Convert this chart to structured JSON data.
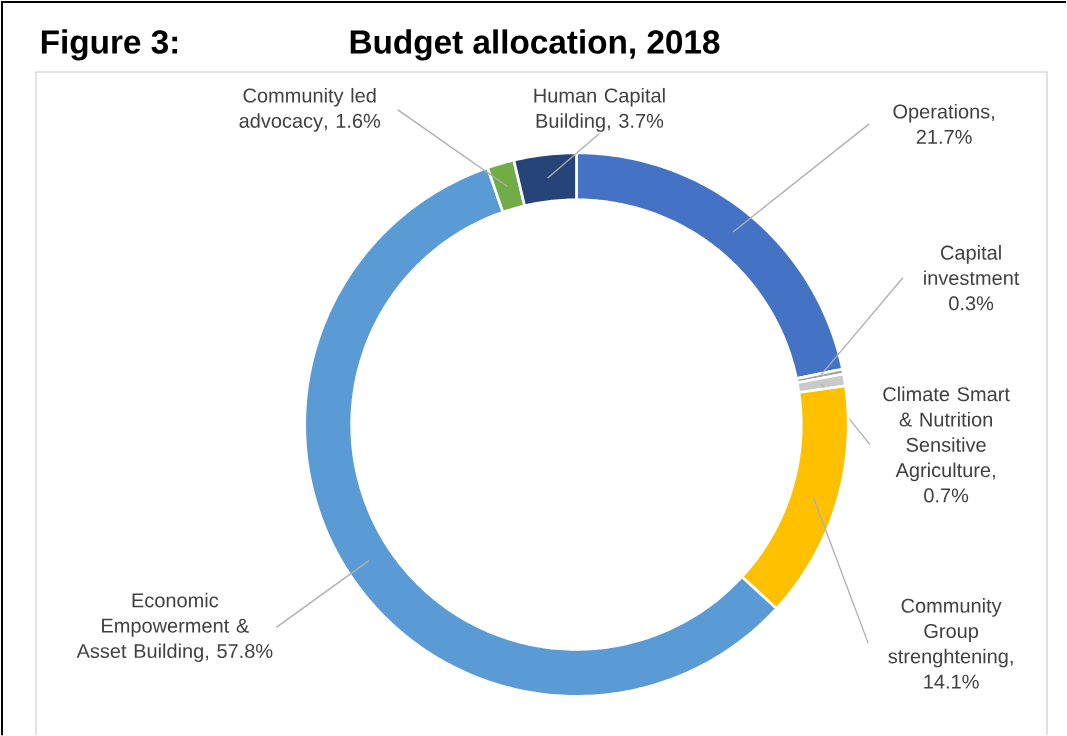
{
  "chart_data": {
    "type": "donut",
    "title": "Budget allocation, 2018",
    "annotations": [
      "Figure 3:"
    ],
    "categories": [
      "Operations",
      "Capital investment",
      "Climate Smart & Nutrition Sensitive Agriculture",
      "Community Group strenghtening",
      "Economic Empowerment & Asset Building",
      "Community led advocacy",
      "Human Capital Building"
    ],
    "values": [
      21.7,
      0.3,
      0.7,
      14.1,
      57.8,
      1.6,
      3.7
    ],
    "value_labels": [
      ", 21.7%",
      "0.3%",
      ", 0.7%",
      ", 14.1%",
      ", 57.8%",
      ", 1.6%",
      ", 3.7%"
    ],
    "colors": [
      "#4472c4",
      "#a5a5a5",
      "#c9c9c9",
      "#ffc000",
      "#5b9bd5",
      "#70ad47",
      "#264478"
    ]
  }
}
